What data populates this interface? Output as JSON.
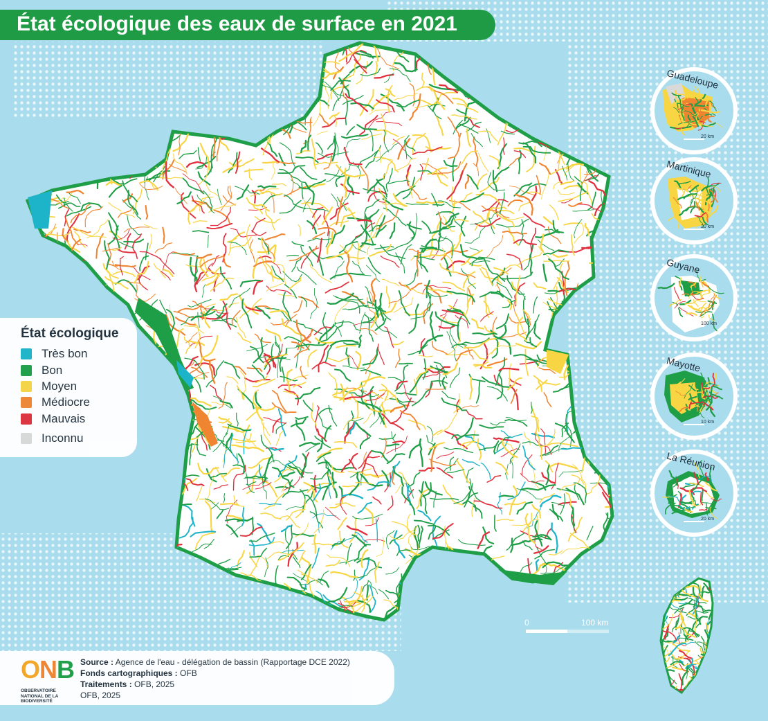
{
  "title": "État écologique des eaux de surface en 2021",
  "legend": {
    "title": "État écologique",
    "items": [
      {
        "label": "Très bon",
        "color": "#1db3c8"
      },
      {
        "label": "Bon",
        "color": "#1e9e46"
      },
      {
        "label": "Moyen",
        "color": "#f8d543"
      },
      {
        "label": "Médiocre",
        "color": "#f08531"
      },
      {
        "label": "Mauvais",
        "color": "#e0303d"
      },
      {
        "label": "Inconnu",
        "color": "#d9d9d9"
      }
    ]
  },
  "insets": [
    {
      "name": "Guadeloupe",
      "scale": "20 km"
    },
    {
      "name": "Martinique",
      "scale": "20 km"
    },
    {
      "name": "Guyane",
      "scale": "100 km"
    },
    {
      "name": "Mayotte",
      "scale": "10 km"
    },
    {
      "name": "La Réunion",
      "scale": "20 km"
    }
  ],
  "scale_bar": {
    "start": "0",
    "end": "100 km"
  },
  "source": {
    "source_label": "Source :",
    "source_text": "Agence de l'eau - délégation de bassin (Rapportage DCE 2022)",
    "fonds_label": "Fonds cartographiques :",
    "fonds_text": "OFB",
    "traitements_label": "Traitements :",
    "traitements_text": "OFB, 2025",
    "credit": "OFB, 2025"
  },
  "logo": {
    "text": "ONB",
    "subtitle": "OBSERVATOIRE NATIONAL DE LA BIODIVERSITÉ"
  },
  "colors": {
    "sea": "#a9dced",
    "land": "#ffffff",
    "banner": "#1f9b45"
  }
}
